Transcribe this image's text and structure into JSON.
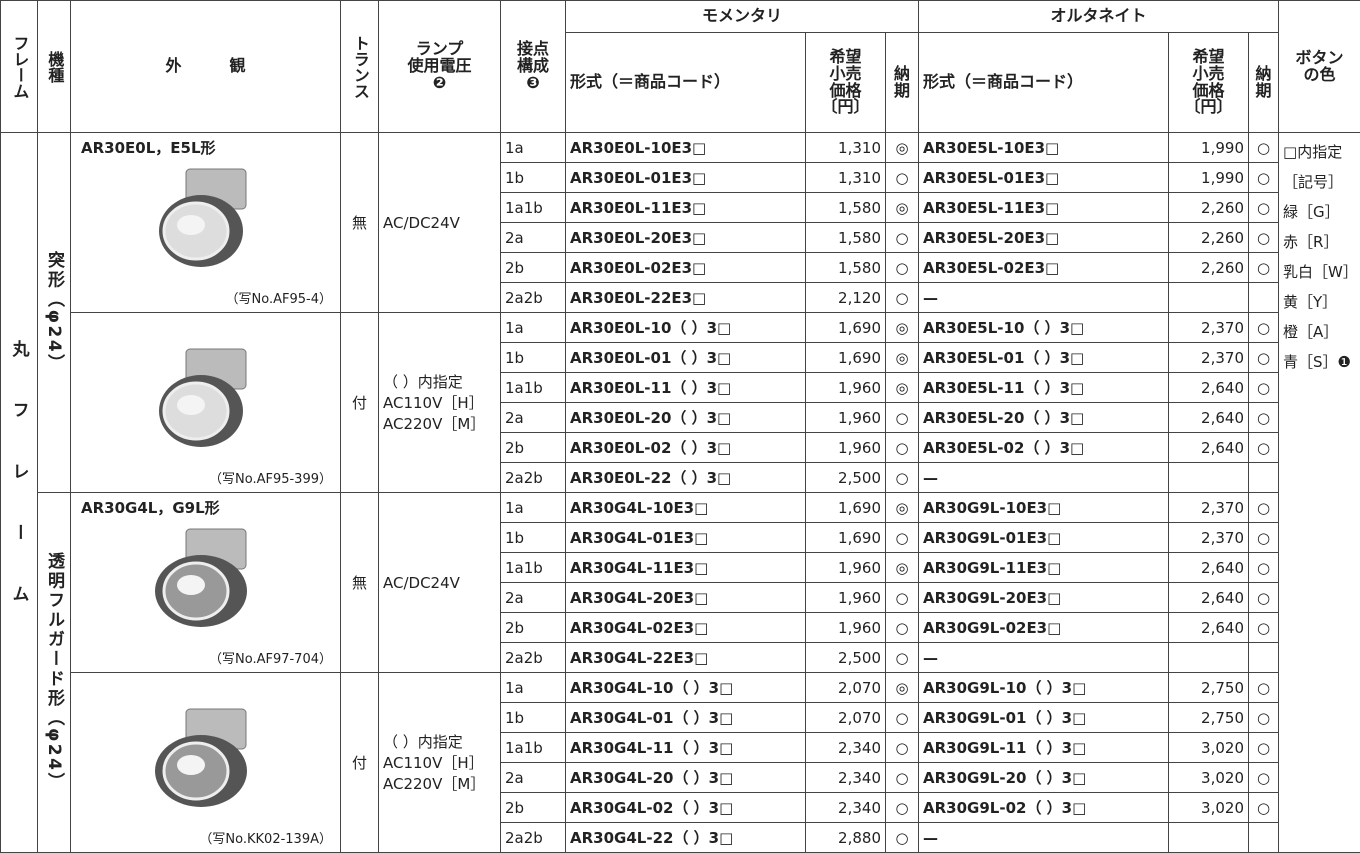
{
  "header": {
    "frame": "フレーム",
    "model": "機種",
    "appearance": "外　　　観",
    "transformer": "トランス",
    "lamp_voltage": [
      "ランプ",
      "使用電圧",
      "❷"
    ],
    "contacts": [
      "接点",
      "構成",
      "❸"
    ],
    "momentary": "モメンタリ",
    "alternate": "オルタネイト",
    "momentary_cols": {
      "code": "形式（＝商品コード）",
      "price": [
        "希望",
        "小売",
        "価格",
        "〔円〕"
      ],
      "delivery": [
        "納",
        "期"
      ]
    },
    "alternate_cols": {
      "code": "形式（＝商品コード）",
      "price": [
        "希望",
        "小売",
        "価格",
        "〔円〕"
      ],
      "delivery": [
        "納",
        "期"
      ]
    },
    "button_color": [
      "ボタン",
      "の色"
    ]
  },
  "frame": "丸フレーム",
  "button_colors": [
    "□内指定",
    "［記号］",
    "緑［G］",
    "赤［R］",
    "乳白［W］",
    "黄［Y］",
    "橙［A］",
    "青［S］❶"
  ],
  "groups": [
    {
      "model": "突形（φ24）",
      "title": "AR30E0L，E5L形",
      "subgroups": [
        {
          "transformer": "無",
          "voltage": [
            "AC/DC24V"
          ],
          "photo": "（写No.AF95-4）",
          "rows": [
            {
              "contact": "1a",
              "momentary": {
                "code": "AR30E0L-10E3□",
                "price": "1,310",
                "delivery": "◎"
              },
              "alternate": {
                "code": "AR30E5L-10E3□",
                "price": "1,990",
                "delivery": "○"
              }
            },
            {
              "contact": "1b",
              "momentary": {
                "code": "AR30E0L-01E3□",
                "price": "1,310",
                "delivery": "○"
              },
              "alternate": {
                "code": "AR30E5L-01E3□",
                "price": "1,990",
                "delivery": "○"
              }
            },
            {
              "contact": "1a1b",
              "momentary": {
                "code": "AR30E0L-11E3□",
                "price": "1,580",
                "delivery": "◎"
              },
              "alternate": {
                "code": "AR30E5L-11E3□",
                "price": "2,260",
                "delivery": "○"
              }
            },
            {
              "contact": "2a",
              "momentary": {
                "code": "AR30E0L-20E3□",
                "price": "1,580",
                "delivery": "○"
              },
              "alternate": {
                "code": "AR30E5L-20E3□",
                "price": "2,260",
                "delivery": "○"
              }
            },
            {
              "contact": "2b",
              "momentary": {
                "code": "AR30E0L-02E3□",
                "price": "1,580",
                "delivery": "○"
              },
              "alternate": {
                "code": "AR30E5L-02E3□",
                "price": "2,260",
                "delivery": "○"
              }
            },
            {
              "contact": "2a2b",
              "momentary": {
                "code": "AR30E0L-22E3□",
                "price": "2,120",
                "delivery": "○"
              },
              "alternate": {
                "code": "—"
              }
            }
          ]
        },
        {
          "transformer": "付",
          "voltage": [
            "（ ）内指定",
            "AC110V［H］",
            "AC220V［M］"
          ],
          "photo": "（写No.AF95-399）",
          "rows": [
            {
              "contact": "1a",
              "momentary": {
                "code": "AR30E0L-10（ ）3□",
                "price": "1,690",
                "delivery": "◎"
              },
              "alternate": {
                "code": "AR30E5L-10（ ）3□",
                "price": "2,370",
                "delivery": "○"
              }
            },
            {
              "contact": "1b",
              "momentary": {
                "code": "AR30E0L-01（ ）3□",
                "price": "1,690",
                "delivery": "◎"
              },
              "alternate": {
                "code": "AR30E5L-01（ ）3□",
                "price": "2,370",
                "delivery": "○"
              }
            },
            {
              "contact": "1a1b",
              "momentary": {
                "code": "AR30E0L-11（ ）3□",
                "price": "1,960",
                "delivery": "◎"
              },
              "alternate": {
                "code": "AR30E5L-11（ ）3□",
                "price": "2,640",
                "delivery": "○"
              }
            },
            {
              "contact": "2a",
              "momentary": {
                "code": "AR30E0L-20（ ）3□",
                "price": "1,960",
                "delivery": "○"
              },
              "alternate": {
                "code": "AR30E5L-20（ ）3□",
                "price": "2,640",
                "delivery": "○"
              }
            },
            {
              "contact": "2b",
              "momentary": {
                "code": "AR30E0L-02（ ）3□",
                "price": "1,960",
                "delivery": "○"
              },
              "alternate": {
                "code": "AR30E5L-02（ ）3□",
                "price": "2,640",
                "delivery": "○"
              }
            },
            {
              "contact": "2a2b",
              "momentary": {
                "code": "AR30E0L-22（ ）3□",
                "price": "2,500",
                "delivery": "○"
              },
              "alternate": {
                "code": "—"
              }
            }
          ]
        }
      ]
    },
    {
      "model": "透明フルガード形（φ24）",
      "title": "AR30G4L，G9L形",
      "subgroups": [
        {
          "transformer": "無",
          "voltage": [
            "AC/DC24V"
          ],
          "photo": "（写No.AF97-704）",
          "rows": [
            {
              "contact": "1a",
              "momentary": {
                "code": "AR30G4L-10E3□",
                "price": "1,690",
                "delivery": "◎"
              },
              "alternate": {
                "code": "AR30G9L-10E3□",
                "price": "2,370",
                "delivery": "○"
              }
            },
            {
              "contact": "1b",
              "momentary": {
                "code": "AR30G4L-01E3□",
                "price": "1,690",
                "delivery": "○"
              },
              "alternate": {
                "code": "AR30G9L-01E3□",
                "price": "2,370",
                "delivery": "○"
              }
            },
            {
              "contact": "1a1b",
              "momentary": {
                "code": "AR30G4L-11E3□",
                "price": "1,960",
                "delivery": "◎"
              },
              "alternate": {
                "code": "AR30G9L-11E3□",
                "price": "2,640",
                "delivery": "○"
              }
            },
            {
              "contact": "2a",
              "momentary": {
                "code": "AR30G4L-20E3□",
                "price": "1,960",
                "delivery": "○"
              },
              "alternate": {
                "code": "AR30G9L-20E3□",
                "price": "2,640",
                "delivery": "○"
              }
            },
            {
              "contact": "2b",
              "momentary": {
                "code": "AR30G4L-02E3□",
                "price": "1,960",
                "delivery": "○"
              },
              "alternate": {
                "code": "AR30G9L-02E3□",
                "price": "2,640",
                "delivery": "○"
              }
            },
            {
              "contact": "2a2b",
              "momentary": {
                "code": "AR30G4L-22E3□",
                "price": "2,500",
                "delivery": "○"
              },
              "alternate": {
                "code": "—"
              }
            }
          ]
        },
        {
          "transformer": "付",
          "voltage": [
            "（ ）内指定",
            "AC110V［H］",
            "AC220V［M］"
          ],
          "photo": "（写No.KK02-139A）",
          "rows": [
            {
              "contact": "1a",
              "momentary": {
                "code": "AR30G4L-10（ ）3□",
                "price": "2,070",
                "delivery": "◎"
              },
              "alternate": {
                "code": "AR30G9L-10（ ）3□",
                "price": "2,750",
                "delivery": "○"
              }
            },
            {
              "contact": "1b",
              "momentary": {
                "code": "AR30G4L-01（ ）3□",
                "price": "2,070",
                "delivery": "○"
              },
              "alternate": {
                "code": "AR30G9L-01（ ）3□",
                "price": "2,750",
                "delivery": "○"
              }
            },
            {
              "contact": "1a1b",
              "momentary": {
                "code": "AR30G4L-11（ ）3□",
                "price": "2,340",
                "delivery": "○"
              },
              "alternate": {
                "code": "AR30G9L-11（ ）3□",
                "price": "3,020",
                "delivery": "○"
              }
            },
            {
              "contact": "2a",
              "momentary": {
                "code": "AR30G4L-20（ ）3□",
                "price": "2,340",
                "delivery": "○"
              },
              "alternate": {
                "code": "AR30G9L-20（ ）3□",
                "price": "3,020",
                "delivery": "○"
              }
            },
            {
              "contact": "2b",
              "momentary": {
                "code": "AR30G4L-02（ ）3□",
                "price": "2,340",
                "delivery": "○"
              },
              "alternate": {
                "code": "AR30G9L-02（ ）3□",
                "price": "3,020",
                "delivery": "○"
              }
            },
            {
              "contact": "2a2b",
              "momentary": {
                "code": "AR30G4L-22（ ）3□",
                "price": "2,880",
                "delivery": "○"
              },
              "alternate": {
                "code": "—"
              }
            }
          ]
        }
      ]
    }
  ]
}
